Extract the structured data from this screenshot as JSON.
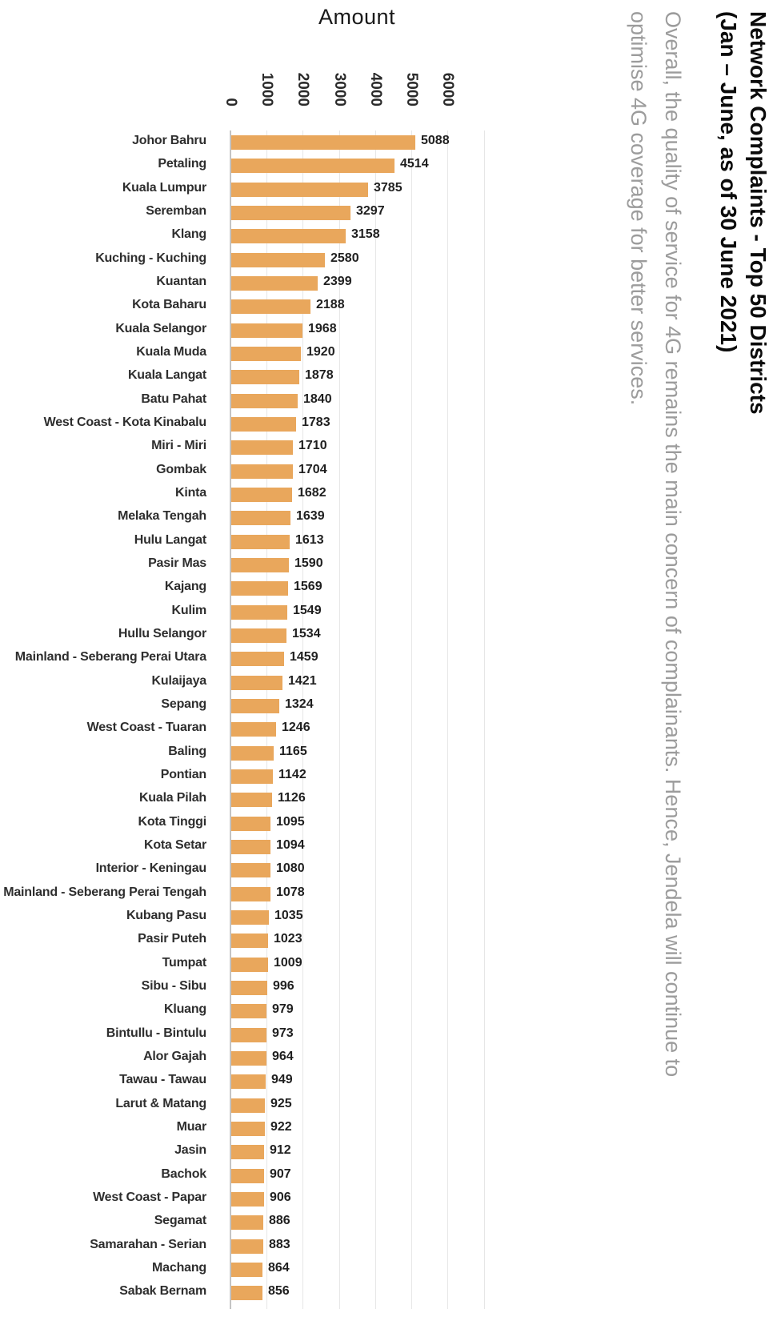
{
  "axis": {
    "title": "Amount",
    "ticks": [
      0,
      1000,
      2000,
      3000,
      4000,
      5000,
      6000
    ]
  },
  "title": {
    "lines": [
      "Network Complaints - Top 50 Districts",
      "(Jan – June, as of 30 June 2021)"
    ]
  },
  "subtitle": {
    "lines": [
      "Overall, the quality of service for 4G remains the main concern of complainants. Hence, Jendela will continue to",
      "optimise 4G coverage for better services."
    ]
  },
  "colors": {
    "bar": "#e9a75c",
    "axis_line": "#c4c4c4",
    "gridline": "#e6e6e6",
    "title": "#0b0b0b",
    "subtitle": "#9c9c9c",
    "category_label": "#2e2e2e",
    "value_label": "#1f1f1f"
  },
  "chart_data": {
    "type": "bar",
    "orientation": "horizontal",
    "title": "Network Complaints - Top 50 Districts (Jan – June, as of 30 June 2021)",
    "subtitle": "Overall, the quality of service for 4G remains the main concern of complainants. Hence, Jendela will continue to optimise 4G coverage for better services.",
    "xlabel": "Amount",
    "ylabel": "",
    "xlim": [
      0,
      7000
    ],
    "grid": true,
    "legend": false,
    "bar_color": "#e9a75c",
    "categories": [
      "Johor Bahru",
      "Petaling",
      "Kuala Lumpur",
      "Seremban",
      "Klang",
      "Kuching - Kuching",
      "Kuantan",
      "Kota Baharu",
      "Kuala Selangor",
      "Kuala Muda",
      "Kuala Langat",
      "Batu Pahat",
      "West Coast - Kota Kinabalu",
      "Miri - Miri",
      "Gombak",
      "Kinta",
      "Melaka Tengah",
      "Hulu Langat",
      "Pasir Mas",
      "Kajang",
      "Kulim",
      "Hullu Selangor",
      "Mainland - Seberang Perai Utara",
      "Kulaijaya",
      "Sepang",
      "West Coast - Tuaran",
      "Baling",
      "Pontian",
      "Kuala Pilah",
      "Kota Tinggi",
      "Kota Setar",
      "Interior - Keningau",
      "Mainland - Seberang Perai Tengah",
      "Kubang Pasu",
      "Pasir Puteh",
      "Tumpat",
      "Sibu - Sibu",
      "Kluang",
      "Bintullu - Bintulu",
      "Alor Gajah",
      "Tawau - Tawau",
      "Larut & Matang",
      "Muar",
      "Jasin",
      "Bachok",
      "West Coast - Papar",
      "Segamat",
      "Samarahan - Serian",
      "Machang",
      "Sabak Bernam"
    ],
    "values": [
      5088,
      4514,
      3785,
      3297,
      3158,
      2580,
      2399,
      2188,
      1968,
      1920,
      1878,
      1840,
      1783,
      1710,
      1704,
      1682,
      1639,
      1613,
      1590,
      1569,
      1549,
      1534,
      1459,
      1421,
      1324,
      1246,
      1165,
      1142,
      1126,
      1095,
      1094,
      1080,
      1078,
      1035,
      1023,
      1009,
      996,
      979,
      973,
      964,
      949,
      925,
      922,
      912,
      907,
      906,
      886,
      883,
      864,
      856
    ]
  }
}
